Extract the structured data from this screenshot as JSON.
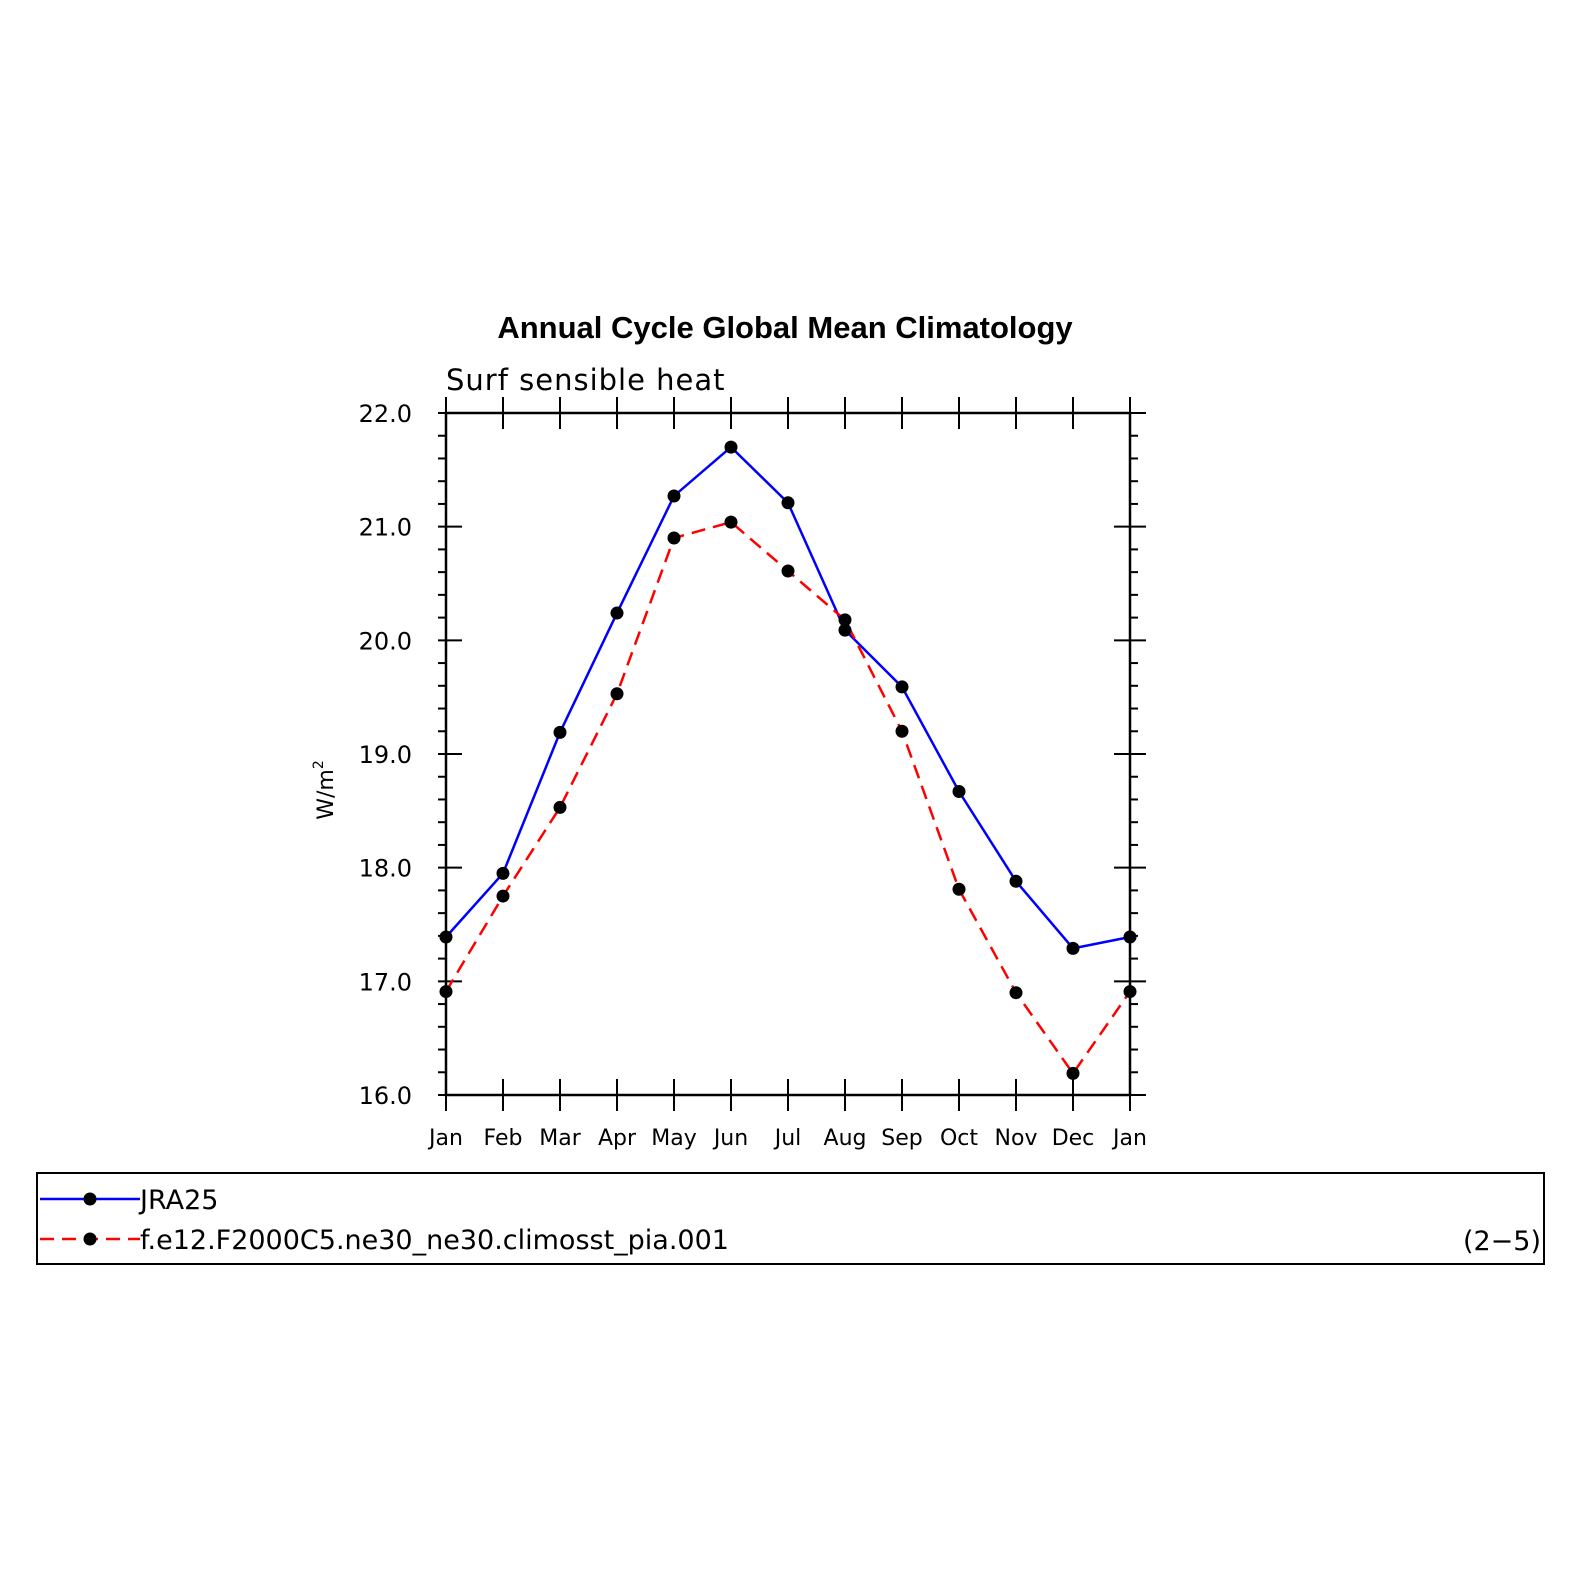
{
  "chart_data": {
    "type": "line",
    "title": "Annual Cycle Global Mean Climatology",
    "subtitle": "Surf sensible heat",
    "ylabel": "W/m",
    "ylabel_superscript": "2",
    "ylim": [
      16.0,
      22.0
    ],
    "yticks": [
      "16.0",
      "17.0",
      "18.0",
      "19.0",
      "20.0",
      "21.0",
      "22.0"
    ],
    "categories": [
      "Jan",
      "Feb",
      "Mar",
      "Apr",
      "May",
      "Jun",
      "Jul",
      "Aug",
      "Sep",
      "Oct",
      "Nov",
      "Dec",
      "Jan"
    ],
    "series": [
      {
        "name": "JRA25",
        "color": "#0000ff",
        "dash": "solid",
        "values": [
          17.39,
          17.95,
          19.19,
          20.24,
          21.27,
          21.7,
          21.21,
          20.09,
          19.59,
          18.67,
          17.88,
          17.29,
          17.39
        ]
      },
      {
        "name": "f.e12.F2000C5.ne30_ne30.climosst_pia.001",
        "color": "#ff0000",
        "dash": "dashed",
        "values": [
          16.91,
          17.75,
          18.53,
          19.53,
          20.9,
          21.04,
          20.61,
          20.18,
          19.2,
          17.81,
          16.9,
          16.19,
          16.91
        ]
      }
    ],
    "legend_position": "bottom",
    "grid": false
  },
  "panel_label": "(2−5)"
}
